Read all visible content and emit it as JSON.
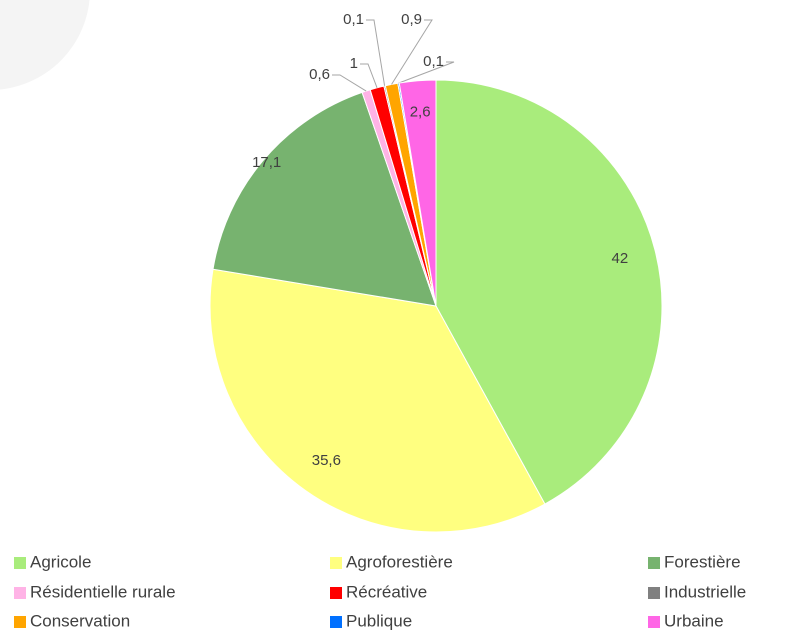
{
  "chart_data": {
    "type": "pie",
    "categories": [
      "Agricole",
      "Agroforestière",
      "Forestière",
      "Résidentielle rurale",
      "Récréative",
      "Industrielle",
      "Conservation",
      "Publique",
      "Urbaine"
    ],
    "values": [
      42,
      35.6,
      17.1,
      0.6,
      1,
      0.1,
      0.9,
      0.1,
      2.6
    ],
    "value_labels": [
      "42",
      "35,6",
      "17,1",
      "0,6",
      "1",
      "0,1",
      "0,9",
      "0,1",
      "2,6"
    ],
    "colors": [
      "#a9ec7c",
      "#ffff80",
      "#77b36f",
      "#ffb3e6",
      "#ff0000",
      "#808080",
      "#ffa500",
      "#0070ff",
      "#ff66e6"
    ],
    "legend": "bottom"
  }
}
